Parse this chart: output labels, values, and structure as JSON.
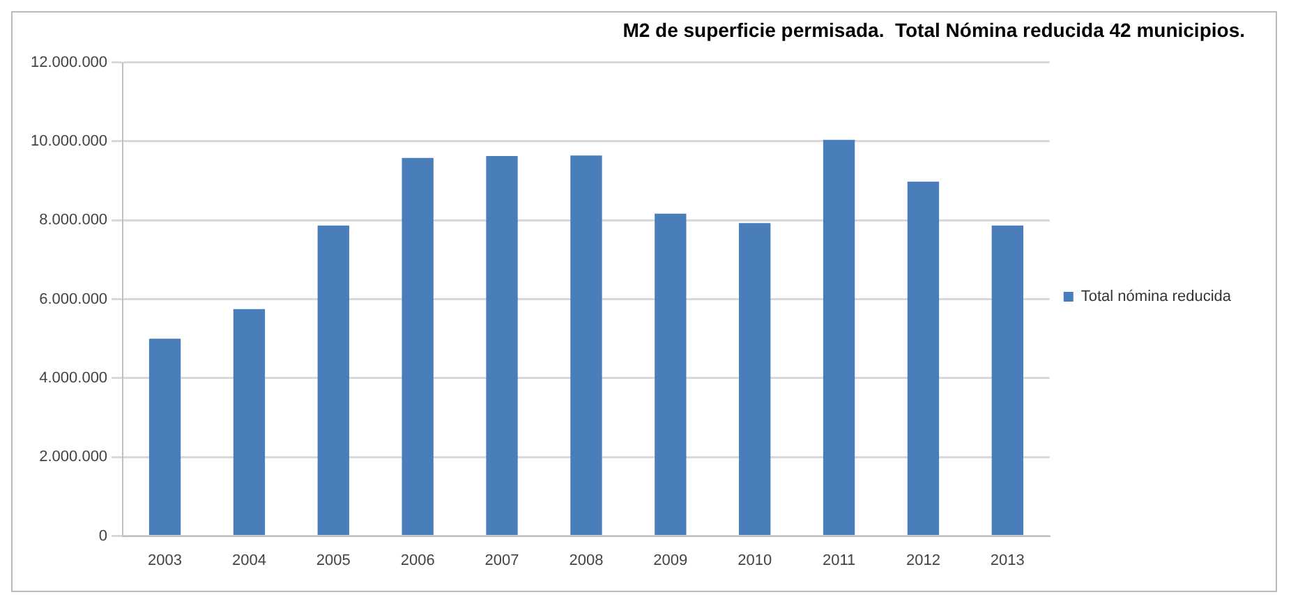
{
  "chart_data": {
    "type": "bar",
    "title": "M2 de superficie permisada.  Total Nómina reducida 42 municipios.",
    "categories": [
      "2003",
      "2004",
      "2005",
      "2006",
      "2007",
      "2008",
      "2009",
      "2010",
      "2011",
      "2012",
      "2013"
    ],
    "series": [
      {
        "name": "Total nómina reducida",
        "color": "#4a7ebb",
        "values": [
          5000000,
          5750000,
          7870000,
          9580000,
          9630000,
          9640000,
          8170000,
          7930000,
          10040000,
          8980000,
          7870000
        ]
      }
    ],
    "ylim": [
      0,
      12000000
    ],
    "yticks": [
      {
        "value": 0,
        "label": "0"
      },
      {
        "value": 2000000,
        "label": "2.000.000"
      },
      {
        "value": 4000000,
        "label": "4.000.000"
      },
      {
        "value": 6000000,
        "label": "6.000.000"
      },
      {
        "value": 8000000,
        "label": "8.000.000"
      },
      {
        "value": 10000000,
        "label": "10.000.000"
      },
      {
        "value": 12000000,
        "label": "12.000.000"
      }
    ],
    "grid": "y",
    "legend": "right"
  }
}
